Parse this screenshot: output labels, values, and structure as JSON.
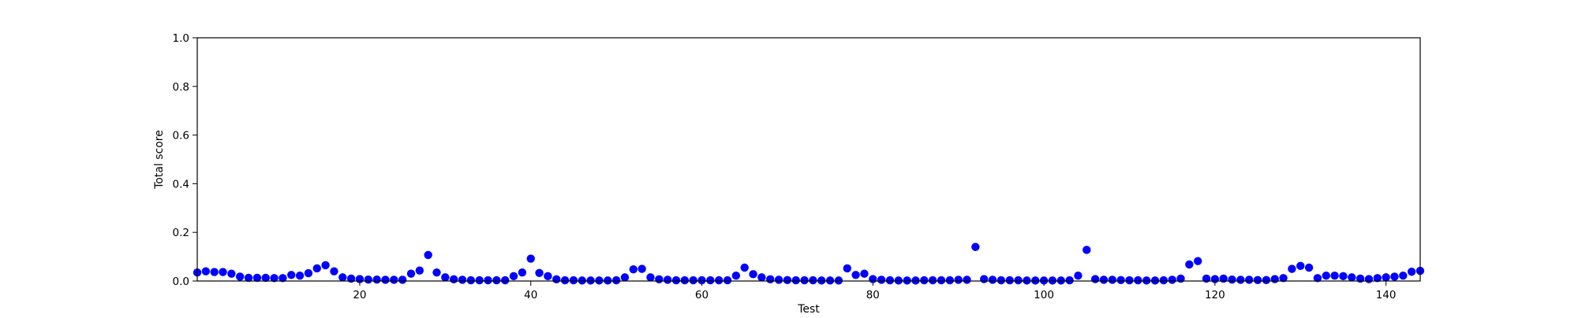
{
  "chart_data": {
    "type": "scatter",
    "xlabel": "Test",
    "ylabel": "Total score",
    "xlim": [
      1,
      144
    ],
    "ylim": [
      0,
      1.0
    ],
    "xticks": [
      20,
      40,
      60,
      80,
      100,
      120,
      140
    ],
    "xtick_labels": [
      "20",
      "40",
      "60",
      "80",
      "100",
      "120",
      "140"
    ],
    "yticks": [
      0.0,
      0.2,
      0.4,
      0.6,
      0.8,
      1.0
    ],
    "ytick_labels": [
      "0.0",
      "0.2",
      "0.4",
      "0.6",
      "0.8",
      "1.0"
    ],
    "grid": false,
    "marker_color": "#0000ff",
    "series": [
      {
        "x": [
          1,
          2,
          3,
          4,
          5,
          6,
          7,
          8,
          9,
          10,
          11,
          12,
          13,
          14,
          15,
          16,
          17,
          18,
          19,
          20,
          21,
          22,
          23,
          24,
          25,
          26,
          27,
          28,
          29,
          30,
          31,
          32,
          33,
          34,
          35,
          36,
          37,
          38,
          39,
          40,
          41,
          42,
          43,
          44,
          45,
          46,
          47,
          48,
          49,
          50,
          51,
          52,
          53,
          54,
          55,
          56,
          57,
          58,
          59,
          60,
          61,
          62,
          63,
          64,
          65,
          66,
          67,
          68,
          69,
          70,
          71,
          72,
          73,
          74,
          75,
          76,
          77,
          78,
          79,
          80,
          81,
          82,
          83,
          84,
          85,
          86,
          87,
          88,
          89,
          90,
          91,
          92,
          93,
          94,
          95,
          96,
          97,
          98,
          99,
          100,
          101,
          102,
          103,
          104,
          105,
          106,
          107,
          108,
          109,
          110,
          111,
          112,
          113,
          114,
          115,
          116,
          117,
          118,
          119,
          120,
          121,
          122,
          123,
          124,
          125,
          126,
          127,
          128,
          129,
          130,
          131,
          132,
          133,
          134,
          135,
          136,
          137,
          138,
          139,
          140,
          141,
          142,
          143,
          144
        ],
        "y": [
          0.035,
          0.04,
          0.037,
          0.037,
          0.03,
          0.018,
          0.013,
          0.013,
          0.013,
          0.012,
          0.012,
          0.025,
          0.022,
          0.032,
          0.052,
          0.065,
          0.04,
          0.015,
          0.01,
          0.008,
          0.006,
          0.006,
          0.005,
          0.005,
          0.005,
          0.03,
          0.043,
          0.107,
          0.035,
          0.015,
          0.007,
          0.005,
          0.003,
          0.003,
          0.003,
          0.003,
          0.003,
          0.02,
          0.035,
          0.092,
          0.033,
          0.02,
          0.007,
          0.003,
          0.003,
          0.002,
          0.002,
          0.002,
          0.002,
          0.003,
          0.015,
          0.048,
          0.05,
          0.015,
          0.007,
          0.005,
          0.003,
          0.003,
          0.003,
          0.003,
          0.003,
          0.003,
          0.003,
          0.022,
          0.055,
          0.028,
          0.015,
          0.007,
          0.005,
          0.004,
          0.003,
          0.003,
          0.003,
          0.002,
          0.002,
          0.002,
          0.052,
          0.025,
          0.03,
          0.008,
          0.005,
          0.003,
          0.002,
          0.002,
          0.002,
          0.003,
          0.003,
          0.003,
          0.003,
          0.005,
          0.005,
          0.14,
          0.008,
          0.005,
          0.003,
          0.003,
          0.003,
          0.002,
          0.002,
          0.002,
          0.002,
          0.002,
          0.003,
          0.022,
          0.128,
          0.008,
          0.005,
          0.005,
          0.004,
          0.003,
          0.003,
          0.002,
          0.002,
          0.003,
          0.005,
          0.01,
          0.068,
          0.082,
          0.01,
          0.008,
          0.01,
          0.006,
          0.005,
          0.005,
          0.004,
          0.004,
          0.008,
          0.012,
          0.05,
          0.062,
          0.055,
          0.012,
          0.022,
          0.022,
          0.02,
          0.015,
          0.01,
          0.008,
          0.012,
          0.015,
          0.018,
          0.022,
          0.038,
          0.042
        ]
      }
    ]
  }
}
